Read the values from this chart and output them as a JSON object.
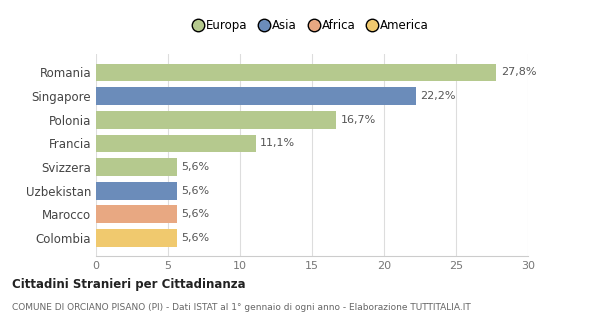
{
  "countries": [
    "Romania",
    "Singapore",
    "Polonia",
    "Francia",
    "Svizzera",
    "Uzbekistan",
    "Marocco",
    "Colombia"
  ],
  "values": [
    27.8,
    22.2,
    16.7,
    11.1,
    5.6,
    5.6,
    5.6,
    5.6
  ],
  "labels": [
    "27,8%",
    "22,2%",
    "16,7%",
    "11,1%",
    "5,6%",
    "5,6%",
    "5,6%",
    "5,6%"
  ],
  "colors": [
    "#b5c98e",
    "#6b8cba",
    "#b5c98e",
    "#b5c98e",
    "#b5c98e",
    "#6b8cba",
    "#e8a882",
    "#f0c96e"
  ],
  "legend_labels": [
    "Europa",
    "Asia",
    "Africa",
    "America"
  ],
  "legend_colors": [
    "#b5c98e",
    "#6b8cba",
    "#e8a882",
    "#f0c96e"
  ],
  "xlim": [
    0,
    30
  ],
  "xticks": [
    0,
    5,
    10,
    15,
    20,
    25,
    30
  ],
  "title_bold": "Cittadini Stranieri per Cittadinanza",
  "subtitle": "COMUNE DI ORCIANO PISANO (PI) - Dati ISTAT al 1° gennaio di ogni anno - Elaborazione TUTTITALIA.IT",
  "background_color": "#ffffff",
  "bar_height": 0.75
}
